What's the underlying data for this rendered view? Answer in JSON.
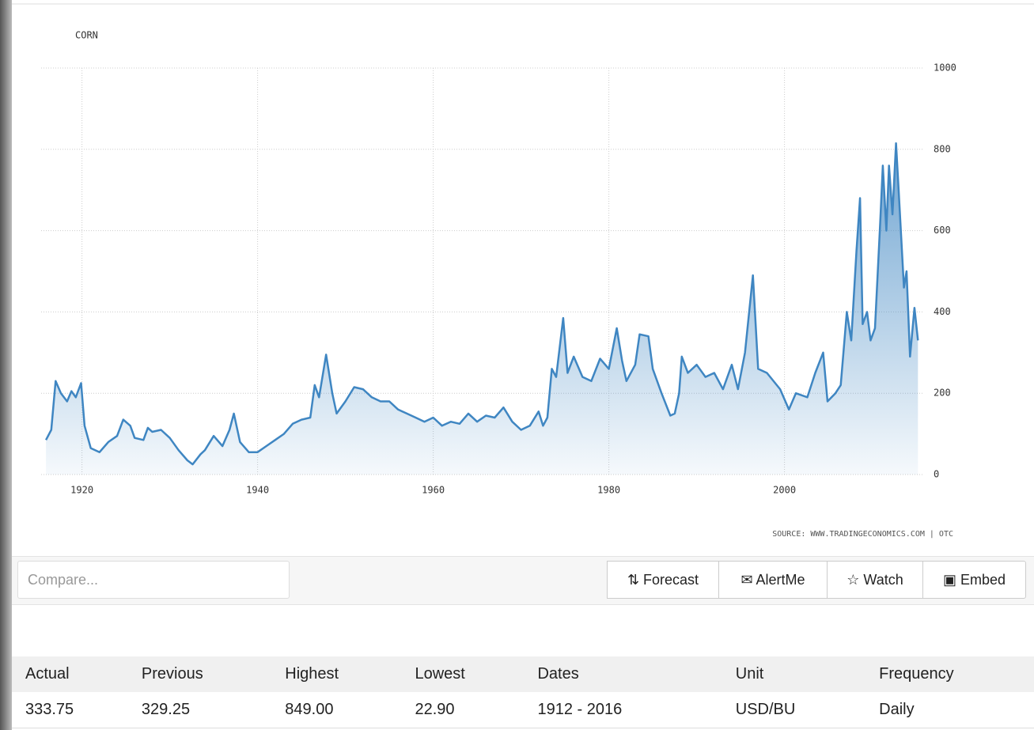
{
  "chart_data": {
    "type": "area",
    "title": "CORN",
    "source": "SOURCE: WWW.TRADINGECONOMICS.COM | OTC",
    "color": "#3f86c2",
    "grid": true,
    "x": [
      1915.9,
      1916.5,
      1917.0,
      1917.6,
      1918.3,
      1918.8,
      1919.3,
      1919.9,
      1920.3,
      1921,
      1922,
      1923,
      1924,
      1924.7,
      1925.5,
      1926,
      1927,
      1927.5,
      1928,
      1929,
      1930,
      1931,
      1932,
      1932.6,
      1933.5,
      1934,
      1935,
      1936,
      1936.8,
      1937.3,
      1938,
      1939,
      1940,
      1941,
      1942,
      1943,
      1944,
      1945,
      1946,
      1946.5,
      1947,
      1947.8,
      1948.5,
      1949,
      1950,
      1951,
      1952,
      1953,
      1954,
      1955,
      1956,
      1957,
      1958,
      1959,
      1960,
      1961,
      1962,
      1963,
      1964,
      1965,
      1966,
      1967,
      1968,
      1969,
      1970,
      1971,
      1972,
      1972.5,
      1973,
      1973.5,
      1974,
      1974.8,
      1975.3,
      1976,
      1977,
      1978,
      1979,
      1980,
      1980.9,
      1981.5,
      1982,
      1983,
      1983.5,
      1984.5,
      1985,
      1986,
      1987,
      1987.5,
      1988,
      1988.3,
      1989,
      1990,
      1991,
      1992,
      1993,
      1994,
      1994.7,
      1995.5,
      1996.4,
      1997,
      1998,
      1999.5,
      2000.5,
      2001.3,
      2002.6,
      2003.5,
      2004.4,
      2004.9,
      2005.8,
      2006.4,
      2007.1,
      2007.6,
      2008.2,
      2008.6,
      2008.9,
      2009.4,
      2009.8,
      2010.3,
      2010.9,
      2011.2,
      2011.6,
      2011.9,
      2012.3,
      2012.7,
      2013.0,
      2013.6,
      2013.9,
      2014.3,
      2014.8,
      2015.2
    ],
    "values": [
      85,
      110,
      230,
      200,
      180,
      205,
      190,
      225,
      120,
      65,
      55,
      80,
      95,
      135,
      120,
      90,
      85,
      115,
      105,
      110,
      90,
      60,
      35,
      25,
      50,
      60,
      95,
      70,
      110,
      150,
      80,
      55,
      55,
      70,
      85,
      100,
      125,
      135,
      140,
      220,
      190,
      295,
      200,
      150,
      180,
      215,
      210,
      190,
      180,
      180,
      160,
      150,
      140,
      130,
      140,
      120,
      130,
      125,
      150,
      130,
      145,
      140,
      165,
      130,
      110,
      120,
      155,
      120,
      140,
      260,
      240,
      385,
      250,
      290,
      240,
      230,
      285,
      260,
      360,
      280,
      230,
      270,
      345,
      340,
      260,
      200,
      145,
      150,
      200,
      290,
      250,
      270,
      240,
      250,
      210,
      270,
      210,
      300,
      490,
      260,
      250,
      210,
      160,
      200,
      190,
      250,
      300,
      180,
      200,
      220,
      400,
      330,
      550,
      680,
      370,
      400,
      330,
      360,
      620,
      760,
      600,
      760,
      640,
      815,
      700,
      460,
      500,
      290,
      410,
      330
    ],
    "xlim": [
      1915.8,
      2015.8
    ],
    "xticks": [
      1920,
      1940,
      1960,
      1980,
      2000
    ],
    "ylim": [
      0,
      1000
    ],
    "yticks": [
      0,
      200,
      400,
      600,
      800,
      1000
    ]
  },
  "toolbar": {
    "compare_placeholder": "Compare...",
    "buttons": [
      "Forecast",
      "AlertMe",
      "Watch",
      "Embed"
    ]
  },
  "table": {
    "header": [
      "Actual",
      "Previous",
      "Highest",
      "Lowest",
      "Dates",
      "Unit",
      "Frequency"
    ],
    "rows": [
      [
        "333.75",
        "329.25",
        "849.00",
        "22.90",
        "1912 - 2016",
        "USD/BU",
        "Daily"
      ]
    ]
  }
}
